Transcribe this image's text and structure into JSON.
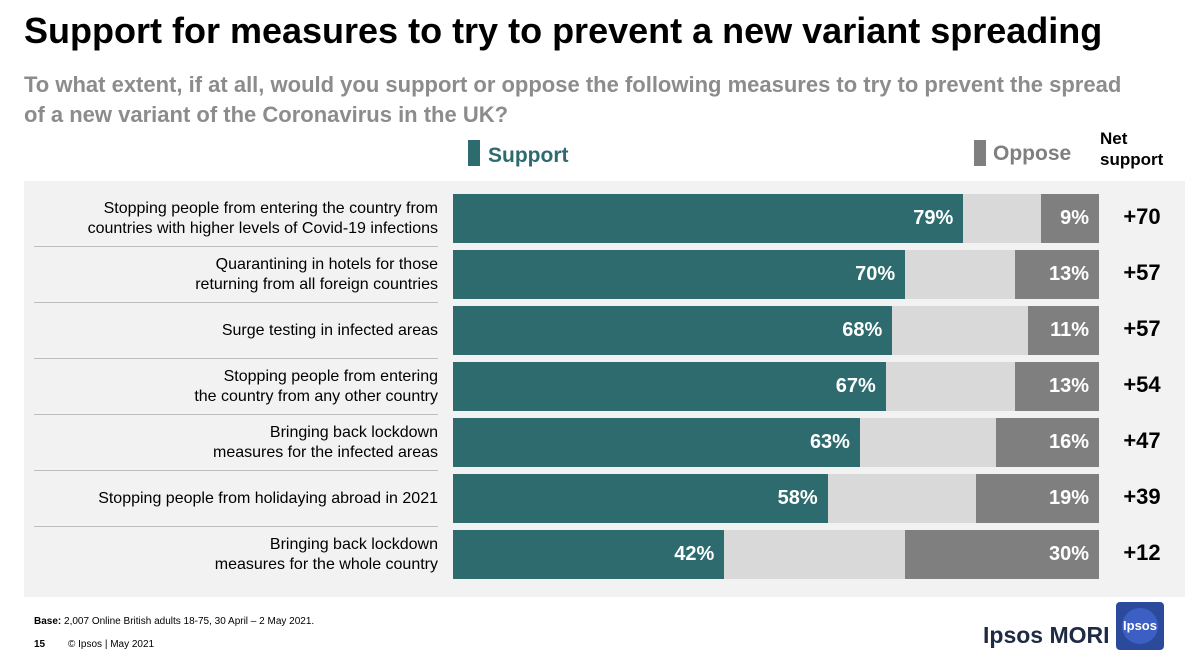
{
  "title": "Support for measures to try to prevent a new variant spreading",
  "subtitle": "To what extent, if at all, would you support or oppose the following measures to try to prevent the spread of a new variant of the Coronavirus in the UK?",
  "legend": {
    "support_label": "Support",
    "oppose_label": "Oppose",
    "net_label": "Net support",
    "support_color": "#2e6b6e",
    "oppose_color": "#7f7f7f"
  },
  "chart_data": {
    "type": "bar",
    "orientation": "horizontal",
    "stacked": "diverging",
    "categories": [
      [
        "Stopping people from entering the country from",
        "countries with higher levels of Covid-19 infections"
      ],
      [
        "Quarantining in hotels for those",
        "returning from all foreign countries"
      ],
      [
        "Surge testing in infected areas"
      ],
      [
        "Stopping people from entering",
        "the country from any other country"
      ],
      [
        "Bringing back lockdown",
        "measures for the infected areas"
      ],
      [
        "Stopping people from holidaying abroad in 2021"
      ],
      [
        "Bringing back lockdown",
        "measures for the whole country"
      ]
    ],
    "series": [
      {
        "name": "Support",
        "values": [
          79,
          70,
          68,
          67,
          63,
          58,
          42
        ],
        "labels": [
          "79%",
          "70%",
          "68%",
          "67%",
          "63%",
          "58%",
          "42%"
        ]
      },
      {
        "name": "Oppose",
        "values": [
          9,
          13,
          11,
          13,
          16,
          19,
          30
        ],
        "labels": [
          "9%",
          "13%",
          "11%",
          "13%",
          "16%",
          "19%",
          "30%"
        ]
      }
    ],
    "net_support": [
      "+70",
      "+57",
      "+57",
      "+54",
      "+47",
      "+39",
      "+12"
    ],
    "xlim": [
      0,
      100
    ]
  },
  "footer": {
    "base_label": "Base:",
    "base_text": "2,007 Online British adults 18-75,  30 April – 2 May 2021.",
    "page_number": "15",
    "copyright": "© Ipsos | May 2021",
    "brand": "Ipsos MORI",
    "logo_text": "Ipsos"
  }
}
